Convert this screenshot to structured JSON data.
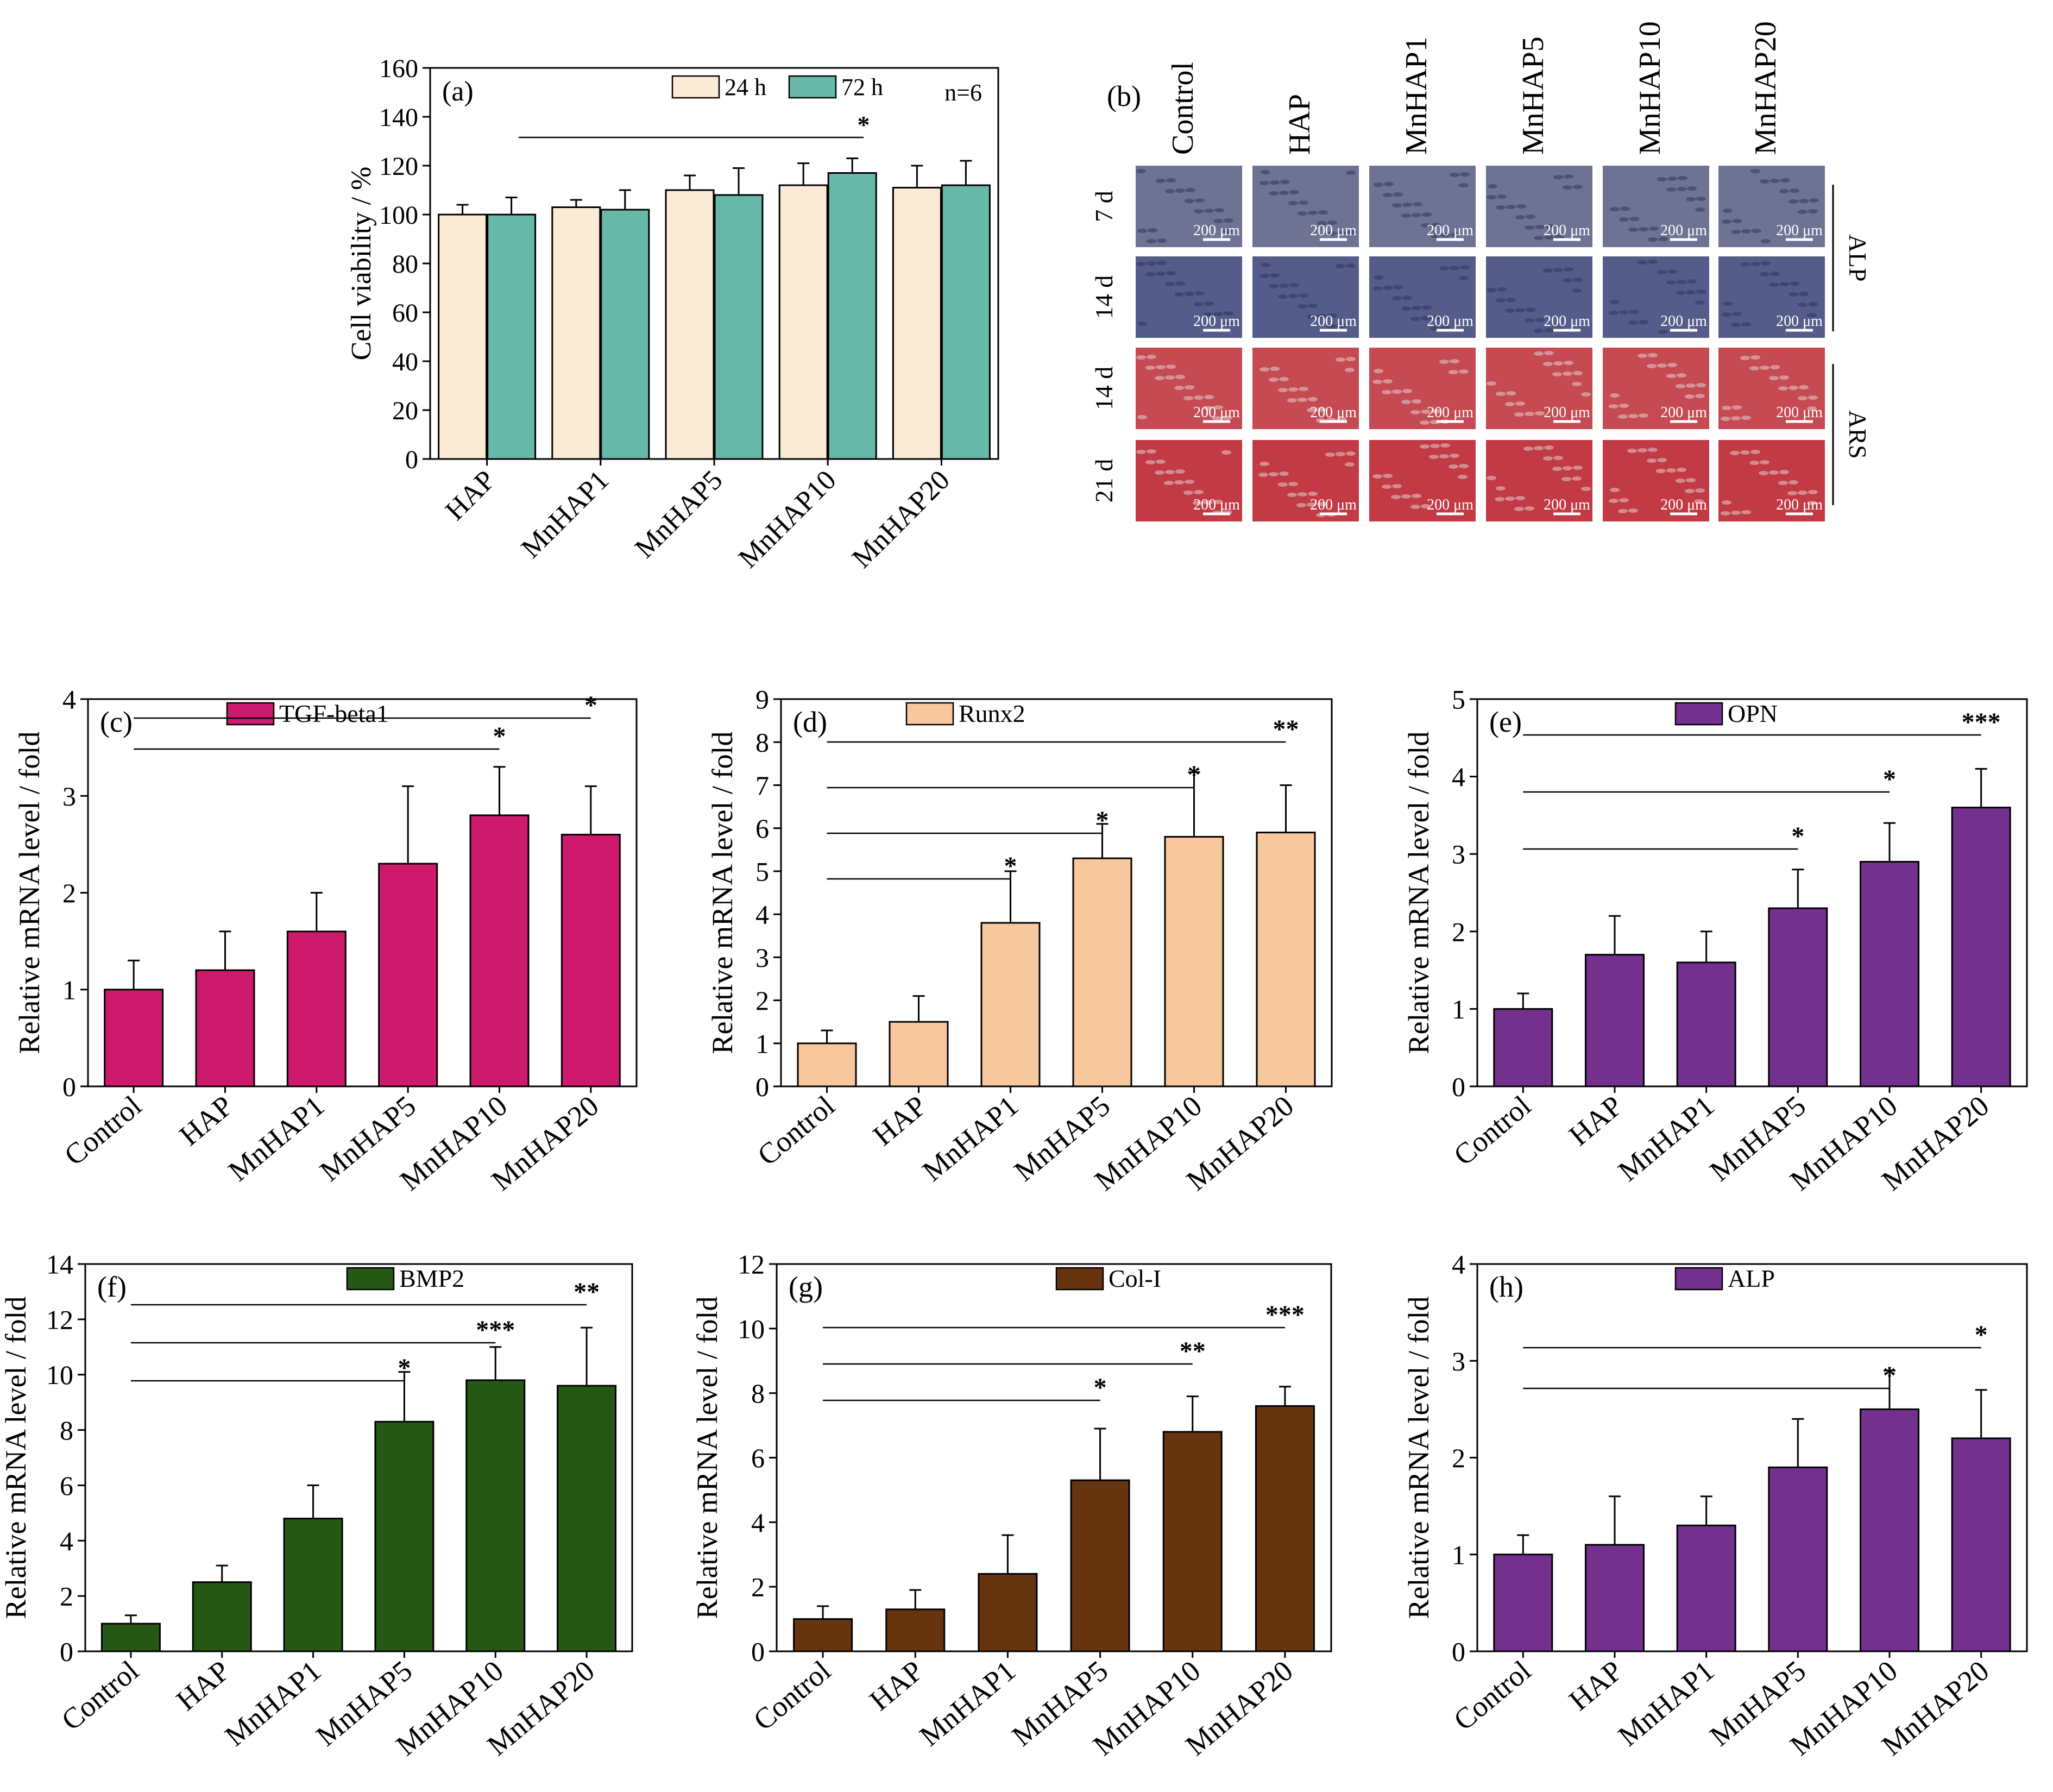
{
  "chart_data": [
    {
      "panel": "(a)",
      "type": "bar",
      "categories": [
        "HAP",
        "MnHAP1",
        "MnHAP5",
        "MnHAP10",
        "MnHAP20"
      ],
      "series": [
        {
          "name": "24 h",
          "color": "#fbebd6",
          "values": [
            100,
            103,
            110,
            112,
            111
          ],
          "errors": [
            4,
            3,
            6,
            9,
            9
          ]
        },
        {
          "name": "72 h",
          "color": "#68b8a9",
          "values": [
            100,
            102,
            108,
            117,
            112
          ],
          "errors": [
            7,
            8,
            11,
            6,
            10
          ]
        }
      ],
      "title": "",
      "xlabel": "",
      "ylabel": "Cell viability / %",
      "ylim": [
        0,
        160
      ],
      "yticks": [
        0,
        20,
        40,
        60,
        80,
        100,
        120,
        140,
        160
      ],
      "annotation": "n=6",
      "legend": "top-center",
      "significance": [
        {
          "from": "HAP",
          "to": "MnHAP10",
          "label": "*"
        }
      ]
    },
    {
      "panel": "(c)",
      "type": "bar",
      "categories": [
        "Control",
        "HAP",
        "MnHAP1",
        "MnHAP5",
        "MnHAP10",
        "MnHAP20"
      ],
      "series": [
        {
          "name": "TGF-beta1",
          "color": "#cd1a6d",
          "values": [
            1.0,
            1.2,
            1.6,
            2.3,
            2.8,
            2.6
          ],
          "errors": [
            0.3,
            0.4,
            0.4,
            0.8,
            0.5,
            0.5
          ]
        }
      ],
      "ylabel": "Relative mRNA level / fold",
      "ylim": [
        0,
        4
      ],
      "yticks": [
        0,
        1,
        2,
        3,
        4
      ],
      "legend": "top-center",
      "significance": [
        {
          "from": "Control",
          "to": "MnHAP20",
          "label": "*"
        },
        {
          "from": "Control",
          "to": "MnHAP10",
          "label": "*"
        }
      ]
    },
    {
      "panel": "(d)",
      "type": "bar",
      "categories": [
        "Control",
        "HAP",
        "MnHAP1",
        "MnHAP5",
        "MnHAP10",
        "MnHAP20"
      ],
      "series": [
        {
          "name": "Runx2",
          "color": "#f7c79e",
          "values": [
            1.0,
            1.5,
            3.8,
            5.3,
            5.8,
            5.9
          ],
          "errors": [
            0.3,
            0.6,
            1.2,
            0.8,
            1.5,
            1.1
          ]
        }
      ],
      "ylabel": "Relative mRNA level / fold",
      "ylim": [
        0,
        9
      ],
      "yticks": [
        0,
        1,
        2,
        3,
        4,
        5,
        6,
        7,
        8,
        9
      ],
      "legend": "top-center",
      "significance": [
        {
          "from": "Control",
          "to": "MnHAP20",
          "label": "**"
        },
        {
          "from": "Control",
          "to": "MnHAP10",
          "label": "*"
        },
        {
          "from": "Control",
          "to": "MnHAP5",
          "label": "*"
        },
        {
          "from": "Control",
          "to": "MnHAP1",
          "label": "*"
        }
      ]
    },
    {
      "panel": "(e)",
      "type": "bar",
      "categories": [
        "Control",
        "HAP",
        "MnHAP1",
        "MnHAP5",
        "MnHAP10",
        "MnHAP20"
      ],
      "series": [
        {
          "name": "OPN",
          "color": "#74308f",
          "values": [
            1.0,
            1.7,
            1.6,
            2.3,
            2.9,
            3.6
          ],
          "errors": [
            0.2,
            0.5,
            0.4,
            0.5,
            0.5,
            0.5
          ]
        }
      ],
      "ylabel": "Relative mRNA level / fold",
      "ylim": [
        0,
        5
      ],
      "yticks": [
        0,
        1,
        2,
        3,
        4,
        5
      ],
      "legend": "top-center",
      "significance": [
        {
          "from": "Control",
          "to": "MnHAP20",
          "label": "***"
        },
        {
          "from": "Control",
          "to": "MnHAP10",
          "label": "*"
        },
        {
          "from": "Control",
          "to": "MnHAP5",
          "label": "*"
        }
      ]
    },
    {
      "panel": "(f)",
      "type": "bar",
      "categories": [
        "Control",
        "HAP",
        "MnHAP1",
        "MnHAP5",
        "MnHAP10",
        "MnHAP20"
      ],
      "series": [
        {
          "name": "BMP2",
          "color": "#255815",
          "values": [
            1.0,
            2.5,
            4.8,
            8.3,
            9.8,
            9.6
          ],
          "errors": [
            0.3,
            0.6,
            1.2,
            1.8,
            1.2,
            2.1
          ]
        }
      ],
      "ylabel": "Relative mRNA level / fold",
      "ylim": [
        0,
        14
      ],
      "yticks": [
        0,
        2,
        4,
        6,
        8,
        10,
        12,
        14
      ],
      "legend": "top-center",
      "significance": [
        {
          "from": "Control",
          "to": "MnHAP20",
          "label": "**"
        },
        {
          "from": "Control",
          "to": "MnHAP10",
          "label": "***"
        },
        {
          "from": "Control",
          "to": "MnHAP5",
          "label": "*"
        }
      ]
    },
    {
      "panel": "(g)",
      "type": "bar",
      "categories": [
        "Control",
        "HAP",
        "MnHAP1",
        "MnHAP5",
        "MnHAP10",
        "MnHAP20"
      ],
      "series": [
        {
          "name": "Col-I",
          "color": "#673410",
          "values": [
            1.0,
            1.3,
            2.4,
            5.3,
            6.8,
            7.6
          ],
          "errors": [
            0.4,
            0.6,
            1.2,
            1.6,
            1.1,
            0.6
          ]
        }
      ],
      "ylabel": "Relative mRNA level / fold",
      "ylim": [
        0,
        12
      ],
      "yticks": [
        0,
        2,
        4,
        6,
        8,
        10,
        12
      ],
      "legend": "top-center",
      "significance": [
        {
          "from": "Control",
          "to": "MnHAP20",
          "label": "***"
        },
        {
          "from": "Control",
          "to": "MnHAP10",
          "label": "**"
        },
        {
          "from": "Control",
          "to": "MnHAP5",
          "label": "*"
        }
      ]
    },
    {
      "panel": "(h)",
      "type": "bar",
      "categories": [
        "Control",
        "HAP",
        "MnHAP1",
        "MnHAP5",
        "MnHAP10",
        "MnHAP20"
      ],
      "series": [
        {
          "name": "ALP",
          "color": "#74308f",
          "values": [
            1.0,
            1.1,
            1.3,
            1.9,
            2.5,
            2.2
          ],
          "errors": [
            0.2,
            0.5,
            0.3,
            0.5,
            0.4,
            0.5
          ]
        }
      ],
      "ylabel": "Relative mRNA level / fold",
      "ylim": [
        0,
        4
      ],
      "yticks": [
        0,
        1,
        2,
        3,
        4
      ],
      "legend": "top-center",
      "significance": [
        {
          "from": "Control",
          "to": "MnHAP20",
          "label": "*"
        },
        {
          "from": "Control",
          "to": "MnHAP10",
          "label": "*"
        }
      ]
    }
  ],
  "staining_panel": {
    "panel": "(b)",
    "columns": [
      "Control",
      "HAP",
      "MnHAP1",
      "MnHAP5",
      "MnHAP10",
      "MnHAP20"
    ],
    "rows": [
      {
        "label": "7 d",
        "stain": "ALP",
        "color": "#6e7394"
      },
      {
        "label": "14 d",
        "stain": "ALP",
        "color": "#555c8a"
      },
      {
        "label": "14 d",
        "stain": "ARS",
        "color": "#c54a52"
      },
      {
        "label": "21 d",
        "stain": "ARS",
        "color": "#c13a44"
      }
    ],
    "groups": [
      "ALP",
      "ARS"
    ],
    "scale_bar_label": "200 μm"
  }
}
